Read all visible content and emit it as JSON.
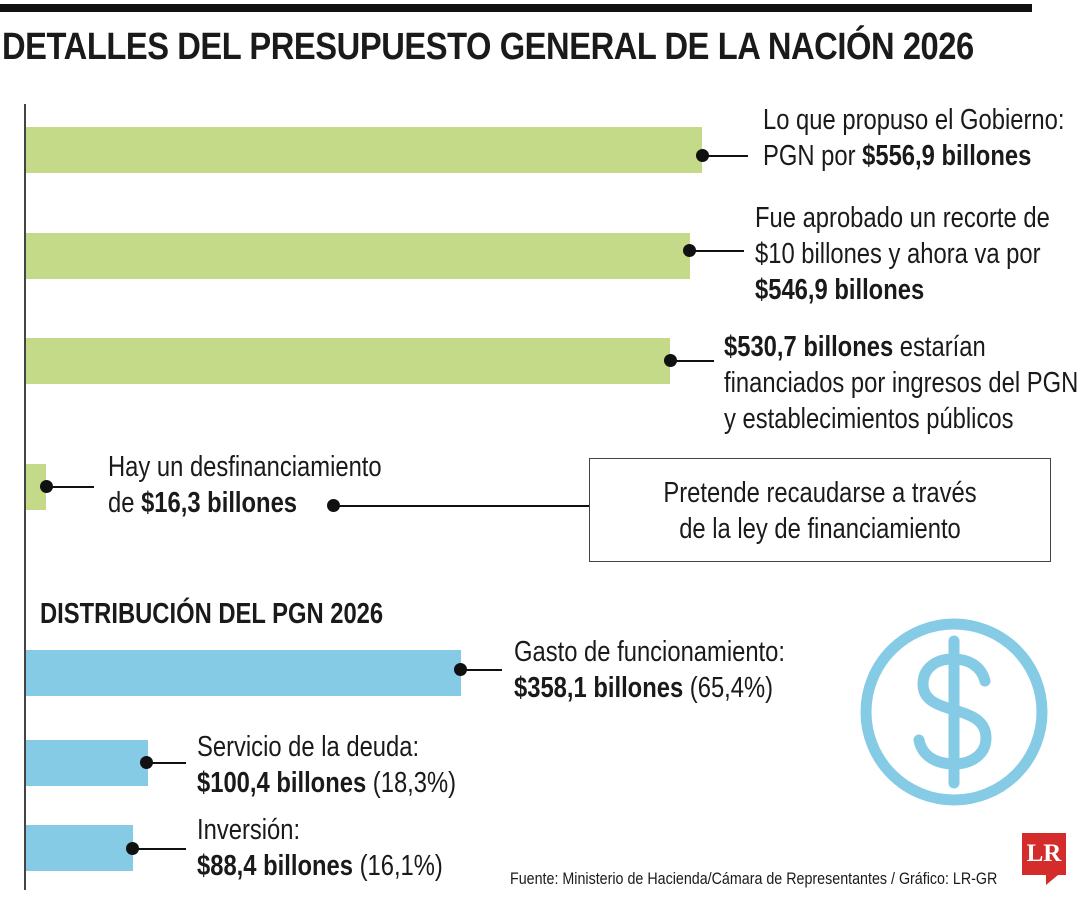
{
  "title": "DETALLES DEL PRESUPUESTO GENERAL DE LA NACIÓN 2026",
  "colors": {
    "top_bars": "#c5da88",
    "distribution_bars": "#86cbe6",
    "icon": "#86cbe6",
    "logo": "#d42b2b"
  },
  "chart_data": [
    {
      "type": "bar",
      "orientation": "horizontal",
      "unit": "billones",
      "categories": [
        "Lo que propuso el Gobierno",
        "Fue aprobado un recorte",
        "Financiados por ingresos del PGN y establecimientos públicos",
        "Desfinanciamiento"
      ],
      "values": [
        556.9,
        546.9,
        530.7,
        16.3
      ],
      "xlim": [
        0,
        556.9
      ],
      "annotations": [
        {
          "pre": "Lo que propuso el Gobierno:",
          "mid": "PGN por ",
          "bold": "$556,9 billones",
          "post": ""
        },
        {
          "line1": "Fue aprobado un recorte de",
          "line2": "$10 billones y ahora va por",
          "bold": "$546,9 billones"
        },
        {
          "bold": "$530,7 billones",
          "post": " estarían",
          "line2": "financiados por ingresos del PGN",
          "line3": "y establecimientos públicos"
        },
        {
          "line1": "Hay un desfinanciamiento",
          "pre": "de ",
          "bold": "$16,3 billones"
        }
      ],
      "note": {
        "line1": "Pretende recaudarse a través",
        "line2": "de la ley de financiamiento"
      }
    },
    {
      "type": "bar",
      "orientation": "horizontal",
      "title": "DISTRIBUCIÓN DEL PGN 2026",
      "unit": "billones",
      "categories": [
        "Gasto de funcionamiento",
        "Servicio de la deuda",
        "Inversión"
      ],
      "values": [
        358.1,
        100.4,
        88.4
      ],
      "percentages": [
        65.4,
        18.3,
        16.1
      ],
      "xlim": [
        0,
        556.9
      ],
      "labels": [
        {
          "name": "Gasto de funcionamiento:",
          "bold": "$358,1 billones",
          "pct": " (65,4%)"
        },
        {
          "name": "Servicio de la deuda:",
          "bold": "$100,4 billones",
          "pct": " (18,3%)"
        },
        {
          "name": "Inversión:",
          "bold": "$88,4 billones",
          "pct": " (16,1%)"
        }
      ]
    }
  ],
  "icons": {
    "money": "dollar-circle-icon"
  },
  "source": "Fuente: Ministerio de Hacienda/Cámara de Representantes / Gráfico: LR-GR",
  "logo_text": "LR"
}
